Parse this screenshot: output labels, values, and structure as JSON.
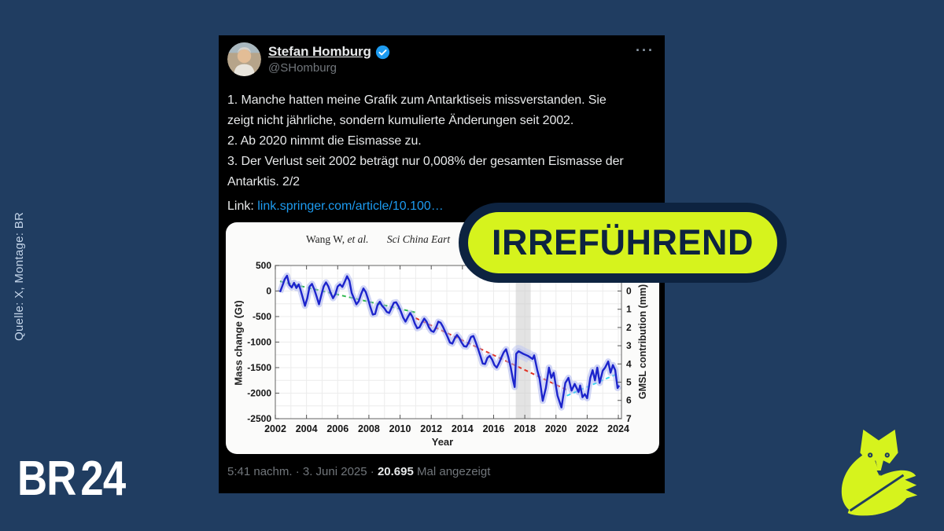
{
  "page": {
    "background": "#203d61",
    "accent_lime": "#d6f31d",
    "accent_navy": "#0d2340"
  },
  "side_credit": {
    "text": "Quelle: X, Montage: BR"
  },
  "brand": {
    "br": "BR",
    "num": "24"
  },
  "badge": {
    "label": "IRREFÜHREND"
  },
  "icons": {
    "verified": "verified-badge-icon",
    "more": "···",
    "fox": "faktenfuchs-fox-icon"
  },
  "tweet": {
    "author": "Stefan Homburg",
    "handle": "@SHomburg",
    "body_lines": [
      "1. Manche hatten meine Grafik zum Antarktiseis missverstanden. Sie",
      "zeigt nicht jährliche, sondern kumulierte Änderungen seit 2002.",
      "2. Ab 2020 nimmt die Eismasse zu.",
      "3. Der Verlust seit 2002 beträgt nur 0,008% der gesamten Eismasse der",
      "Antarktis. 2/2"
    ],
    "link_label": "Link:",
    "link_url": "link.springer.com/article/10.100…",
    "footer": {
      "prefix": "5:41 nachm. · 3. Juni 2025 · ",
      "views": "20.695",
      "suffix": " Mal angezeigt"
    }
  },
  "chart_data": {
    "type": "line",
    "title_author": "Wang W,",
    "title_etal": "et al.",
    "title_journal": "Sci China Eart",
    "xlabel": "Year",
    "ylabel_left": "Mass change (Gt)",
    "ylabel_right": "GMSL contribution (mm)",
    "xlim": [
      2002,
      2024.2
    ],
    "ylim": [
      -2500,
      500
    ],
    "x_ticks": [
      2002,
      2004,
      2006,
      2008,
      2010,
      2012,
      2014,
      2016,
      2018,
      2020,
      2022,
      2024
    ],
    "y_ticks_left": [
      500,
      0,
      -500,
      -1000,
      -1500,
      -2000,
      -2500
    ],
    "y_ticks_right": [
      0,
      1,
      2,
      3,
      4,
      5,
      6,
      7
    ],
    "gt_per_mm": 357,
    "grid": true,
    "gap_band": [
      2017.42,
      2018.38
    ],
    "series": [
      {
        "name": "gap-uncertainty",
        "color": "#b7c1f5",
        "width": 16,
        "opacity": 0.45,
        "x": [
          2017.45,
          2017.6,
          2017.9,
          2018.2,
          2018.35
        ],
        "y": [
          -1230,
          -1180,
          -1230,
          -1270,
          -1300
        ]
      },
      {
        "name": "trend-2002-2011",
        "color": "#2eb84d",
        "style": "dashed",
        "width": 2,
        "x": [
          2002.3,
          2011.0
        ],
        "y": [
          190,
          -420
        ]
      },
      {
        "name": "trend-2011-2020",
        "color": "#e03324",
        "style": "dashed",
        "width": 2,
        "x": [
          2011.0,
          2020.65
        ],
        "y": [
          -530,
          -1930
        ]
      },
      {
        "name": "trend-2021-2024",
        "color": "#33d6f0",
        "style": "dashed",
        "width": 2,
        "x": [
          2020.7,
          2023.95
        ],
        "y": [
          -2050,
          -1620
        ]
      },
      {
        "name": "mass-change",
        "color": "#1c24cc",
        "width": 2.4,
        "band": "#a9b3ee",
        "x": [
          2002.3,
          2002.45,
          2002.6,
          2002.75,
          2002.9,
          2003.05,
          2003.2,
          2003.35,
          2003.5,
          2003.6,
          2003.75,
          2003.9,
          2004.05,
          2004.2,
          2004.35,
          2004.5,
          2004.65,
          2004.8,
          2004.95,
          2005.1,
          2005.25,
          2005.4,
          2005.55,
          2005.7,
          2005.85,
          2006.0,
          2006.15,
          2006.3,
          2006.45,
          2006.6,
          2006.75,
          2006.9,
          2007.05,
          2007.2,
          2007.35,
          2007.5,
          2007.65,
          2007.8,
          2007.95,
          2008.1,
          2008.25,
          2008.4,
          2008.55,
          2008.7,
          2008.85,
          2009.0,
          2009.15,
          2009.3,
          2009.45,
          2009.6,
          2009.75,
          2009.9,
          2010.05,
          2010.2,
          2010.35,
          2010.5,
          2010.65,
          2010.8,
          2010.95,
          2011.1,
          2011.25,
          2011.4,
          2011.55,
          2011.7,
          2011.85,
          2012.0,
          2012.15,
          2012.3,
          2012.45,
          2012.6,
          2012.75,
          2012.9,
          2013.05,
          2013.2,
          2013.35,
          2013.5,
          2013.65,
          2013.8,
          2013.95,
          2014.1,
          2014.25,
          2014.4,
          2014.55,
          2014.7,
          2014.85,
          2015.0,
          2015.15,
          2015.3,
          2015.45,
          2015.6,
          2015.75,
          2015.9,
          2016.05,
          2016.2,
          2016.35,
          2016.5,
          2016.65,
          2016.8,
          2016.95,
          2017.1,
          2017.25,
          2017.35,
          2017.45,
          2017.6,
          2017.9,
          2018.2,
          2018.35,
          2018.5,
          2018.6,
          2018.8,
          2018.95,
          2019.15,
          2019.35,
          2019.55,
          2019.7,
          2019.85,
          2020.1,
          2020.35,
          2020.6,
          2020.8,
          2021.0,
          2021.2,
          2021.45,
          2021.55,
          2021.7,
          2021.85,
          2022.0,
          2022.2,
          2022.35,
          2022.5,
          2022.65,
          2022.8,
          2023.0,
          2023.15,
          2023.35,
          2023.5,
          2023.65,
          2023.8,
          2023.95,
          2024.05
        ],
        "y": [
          -20,
          100,
          230,
          300,
          120,
          70,
          160,
          60,
          130,
          40,
          -120,
          -290,
          -140,
          90,
          140,
          30,
          -110,
          -260,
          -80,
          90,
          170,
          90,
          -40,
          -140,
          -60,
          90,
          130,
          80,
          180,
          290,
          200,
          -40,
          -150,
          -260,
          -200,
          -60,
          50,
          -20,
          -160,
          -320,
          -460,
          -450,
          -280,
          -210,
          -290,
          -340,
          -410,
          -430,
          -330,
          -230,
          -220,
          -300,
          -400,
          -520,
          -600,
          -510,
          -430,
          -510,
          -640,
          -730,
          -710,
          -620,
          -540,
          -600,
          -710,
          -780,
          -800,
          -720,
          -600,
          -620,
          -700,
          -800,
          -900,
          -1010,
          -1030,
          -930,
          -860,
          -920,
          -1010,
          -1080,
          -1090,
          -1010,
          -900,
          -880,
          -1000,
          -1130,
          -1270,
          -1420,
          -1430,
          -1310,
          -1270,
          -1340,
          -1450,
          -1500,
          -1410,
          -1300,
          -1200,
          -1140,
          -1300,
          -1500,
          -1750,
          -1880,
          -1230,
          -1180,
          -1230,
          -1270,
          -1300,
          -1330,
          -1260,
          -1550,
          -1720,
          -2150,
          -1900,
          -1500,
          -1700,
          -1600,
          -2050,
          -2280,
          -1800,
          -1700,
          -1950,
          -1820,
          -1980,
          -1850,
          -2080,
          -2020,
          -2100,
          -1700,
          -1550,
          -1750,
          -1500,
          -1800,
          -1560,
          -1500,
          -1380,
          -1600,
          -1450,
          -1550,
          -1900,
          -1850
        ]
      }
    ]
  }
}
